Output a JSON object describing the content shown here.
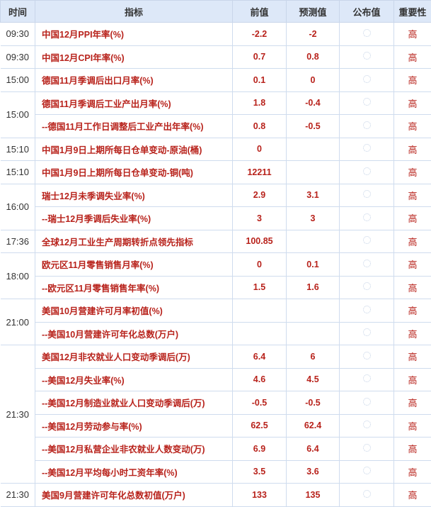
{
  "headers": {
    "time": "时间",
    "indicator": "指标",
    "previous": "前值",
    "forecast": "预测值",
    "actual": "公布值",
    "importance": "重要性"
  },
  "groups": [
    {
      "time": "09:30",
      "rows": [
        {
          "name": "中国12月PPI年率(%)",
          "previous": "-2.2",
          "forecast": "-2",
          "importance": "高"
        }
      ]
    },
    {
      "time": "09:30",
      "rows": [
        {
          "name": "中国12月CPI年率(%)",
          "previous": "0.7",
          "forecast": "0.8",
          "importance": "高"
        }
      ]
    },
    {
      "time": "15:00",
      "rows": [
        {
          "name": "德国11月季调后出口月率(%)",
          "previous": "0.1",
          "forecast": "0",
          "importance": "高"
        }
      ]
    },
    {
      "time": "15:00",
      "rows": [
        {
          "name": "德国11月季调后工业产出月率(%)",
          "previous": "1.8",
          "forecast": "-0.4",
          "importance": "高"
        },
        {
          "name": "--德国11月工作日调整后工业产出年率(%)",
          "previous": "0.8",
          "forecast": "-0.5",
          "importance": "高"
        }
      ]
    },
    {
      "time": "15:10",
      "rows": [
        {
          "name": "中国1月9日上期所每日仓单变动-原油(桶)",
          "previous": "0",
          "forecast": "",
          "importance": "高"
        }
      ]
    },
    {
      "time": "15:10",
      "rows": [
        {
          "name": "中国1月9日上期所每日仓单变动-铜(吨)",
          "previous": "12211",
          "forecast": "",
          "importance": "高"
        }
      ]
    },
    {
      "time": "16:00",
      "rows": [
        {
          "name": "瑞士12月未季调失业率(%)",
          "previous": "2.9",
          "forecast": "3.1",
          "importance": "高"
        },
        {
          "name": "--瑞士12月季调后失业率(%)",
          "previous": "3",
          "forecast": "3",
          "importance": "高"
        }
      ]
    },
    {
      "time": "17:36",
      "rows": [
        {
          "name": "全球12月工业生产周期转折点领先指标",
          "previous": "100.85",
          "forecast": "",
          "importance": "高"
        }
      ]
    },
    {
      "time": "18:00",
      "rows": [
        {
          "name": "欧元区11月零售销售月率(%)",
          "previous": "0",
          "forecast": "0.1",
          "importance": "高"
        },
        {
          "name": "--欧元区11月零售销售年率(%)",
          "previous": "1.5",
          "forecast": "1.6",
          "importance": "高"
        }
      ]
    },
    {
      "time": "21:00",
      "rows": [
        {
          "name": "美国10月营建许可月率初值(%)",
          "previous": "",
          "forecast": "",
          "importance": "高"
        },
        {
          "name": "--美国10月营建许可年化总数(万户)",
          "previous": "",
          "forecast": "",
          "importance": "高"
        }
      ]
    },
    {
      "time": "21:30",
      "rows": [
        {
          "name": "美国12月非农就业人口变动季调后(万)",
          "previous": "6.4",
          "forecast": "6",
          "importance": "高"
        },
        {
          "name": "--美国12月失业率(%)",
          "previous": "4.6",
          "forecast": "4.5",
          "importance": "高"
        },
        {
          "name": "--美国12月制造业就业人口变动季调后(万)",
          "previous": "-0.5",
          "forecast": "-0.5",
          "importance": "高"
        },
        {
          "name": "--美国12月劳动参与率(%)",
          "previous": "62.5",
          "forecast": "62.4",
          "importance": "高"
        },
        {
          "name": "--美国12月私营企业非农就业人数变动(万)",
          "previous": "6.9",
          "forecast": "6.4",
          "importance": "高"
        },
        {
          "name": "--美国12月平均每小时工资年率(%)",
          "previous": "3.5",
          "forecast": "3.6",
          "importance": "高"
        }
      ]
    },
    {
      "time": "21:30",
      "rows": [
        {
          "name": "美国9月营建许可年化总数初值(万户)",
          "previous": "133",
          "forecast": "135",
          "importance": "高"
        }
      ]
    }
  ],
  "actual_icon": "loading-spinner-icon",
  "colors": {
    "header_bg": "#dde8f8",
    "value_text": "#b8221b"
  }
}
